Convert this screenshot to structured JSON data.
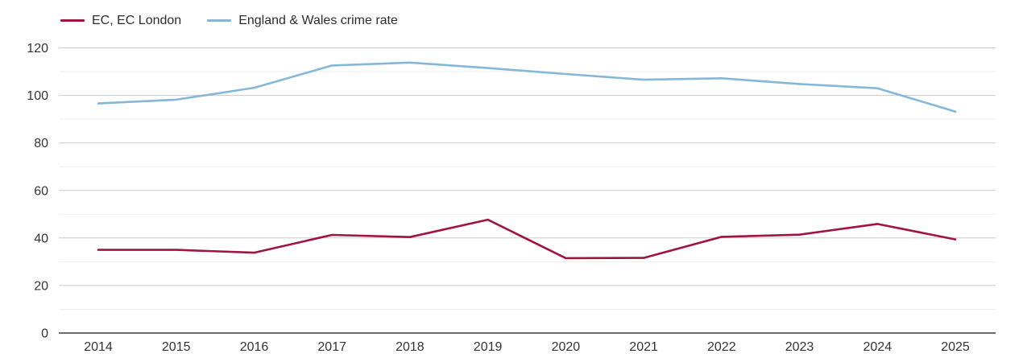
{
  "chart_data": {
    "type": "line",
    "title": "",
    "x": [
      2014,
      2015,
      2016,
      2017,
      2018,
      2019,
      2020,
      2021,
      2022,
      2023,
      2024,
      2025
    ],
    "series": [
      {
        "name": "EC, EC London",
        "color": "#a11440",
        "values": [
          35,
          35,
          33.8,
          41.3,
          40.4,
          47.7,
          31.5,
          31.6,
          40.5,
          41.4,
          45.9,
          39.4
        ]
      },
      {
        "name": "England & Wales crime rate",
        "color": "#85b7d9",
        "values": [
          96.6,
          98.2,
          103.2,
          112.6,
          113.8,
          111.5,
          109,
          106.6,
          107.2,
          104.8,
          103,
          93.2
        ]
      }
    ],
    "ylim": [
      0,
      120
    ],
    "y_ticks": [
      0,
      20,
      40,
      60,
      80,
      100,
      120
    ],
    "y_minor_step": 10,
    "grid": true,
    "legend_position": "top-left"
  },
  "colors": {
    "grid_major": "#c9c9c9",
    "grid_minor": "#ededed",
    "axis_line": "#3a3a3a",
    "tick_label": "#333333",
    "background": "#ffffff"
  }
}
